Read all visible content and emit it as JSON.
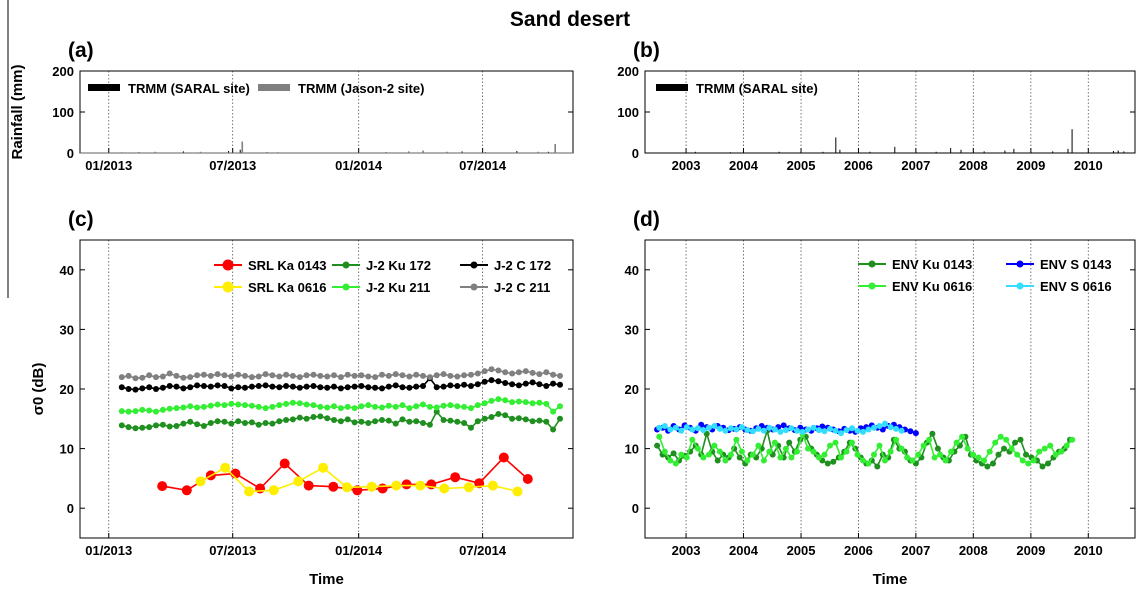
{
  "title": "Sand desert",
  "chart_data": [
    {
      "panel": "(a)",
      "type": "bar",
      "ylabel": "Rainfall (mm)",
      "xlabel": "",
      "ylim": [
        0,
        200
      ],
      "yticks": [
        0,
        100,
        200
      ],
      "xlim": [
        "2012-11-20",
        "2014-11-10"
      ],
      "xticks": [
        {
          "date": "2013-01-01",
          "label": "01/2013"
        },
        {
          "date": "2013-07-01",
          "label": "07/2013"
        },
        {
          "date": "2014-01-01",
          "label": "01/2014"
        },
        {
          "date": "2014-07-01",
          "label": "07/2014"
        }
      ],
      "legend": "top-left",
      "series": [
        {
          "name": "TRMM (SARAL site)",
          "color": "#000000",
          "x": [
            "2013-02-14",
            "2013-04-20",
            "2013-06-25",
            "2013-07-12",
            "2013-08-20",
            "2014-02-10",
            "2014-06-01",
            "2014-07-05",
            "2014-08-20",
            "2014-10-05"
          ],
          "values": [
            2,
            4,
            5,
            8,
            2,
            2,
            4,
            2,
            5,
            3
          ]
        },
        {
          "name": "TRMM (Jason-2 site)",
          "color": "#808080",
          "x": [
            "2013-01-20",
            "2013-03-10",
            "2013-05-15",
            "2013-07-15",
            "2013-09-05",
            "2014-03-15",
            "2014-04-05",
            "2014-05-10",
            "2014-09-20",
            "2014-10-15"
          ],
          "values": [
            2,
            3,
            3,
            28,
            2,
            4,
            6,
            3,
            3,
            22
          ]
        }
      ]
    },
    {
      "panel": "(b)",
      "type": "bar",
      "ylabel": "",
      "xlabel": "",
      "ylim": [
        0,
        200
      ],
      "yticks": [
        0,
        100,
        200
      ],
      "xlim": [
        "2002-04-15",
        "2010-10-25"
      ],
      "xticks": [
        {
          "date": "2003-01-01",
          "label": "2003"
        },
        {
          "date": "2004-01-01",
          "label": "2004"
        },
        {
          "date": "2005-01-01",
          "label": "2005"
        },
        {
          "date": "2006-01-01",
          "label": "2006"
        },
        {
          "date": "2007-01-01",
          "label": "2007"
        },
        {
          "date": "2008-01-01",
          "label": "2008"
        },
        {
          "date": "2009-01-01",
          "label": "2009"
        },
        {
          "date": "2010-01-01",
          "label": "2010"
        }
      ],
      "legend": "top-left",
      "series": [
        {
          "name": "TRMM (SARAL site)",
          "color": "#000000",
          "x": [
            "2003-03-01",
            "2003-10-10",
            "2004-08-15",
            "2005-05-20",
            "2005-08-10",
            "2005-09-05",
            "2006-03-15",
            "2006-08-20",
            "2007-05-10",
            "2007-08-10",
            "2007-10-15",
            "2008-03-10",
            "2008-07-20",
            "2008-09-15",
            "2009-05-20",
            "2009-08-25",
            "2009-09-20",
            "2010-06-10",
            "2010-07-10",
            "2010-08-15"
          ],
          "values": [
            3,
            2,
            3,
            3,
            38,
            8,
            3,
            15,
            3,
            12,
            8,
            4,
            6,
            10,
            4,
            10,
            58,
            5,
            6,
            4
          ]
        }
      ]
    },
    {
      "panel": "(c)",
      "type": "line",
      "xlabel": "Time",
      "ylabel": "σ0 (dB)",
      "ylim": [
        -5,
        45
      ],
      "yticks": [
        0,
        10,
        20,
        30,
        40
      ],
      "xlim": [
        "2012-11-20",
        "2014-11-10"
      ],
      "xticks": [
        {
          "date": "2013-01-01",
          "label": "01/2013"
        },
        {
          "date": "2013-07-01",
          "label": "07/2013"
        },
        {
          "date": "2014-01-01",
          "label": "01/2014"
        },
        {
          "date": "2014-07-01",
          "label": "07/2014"
        }
      ],
      "legend": "top-right",
      "series": [
        {
          "name": "SRL Ka 0143",
          "color": "#ff0000",
          "marker": 5,
          "x": [
            "2013-03-20",
            "2013-04-25",
            "2013-05-30",
            "2013-07-05",
            "2013-08-10",
            "2013-09-15",
            "2013-10-20",
            "2013-11-25",
            "2013-12-30",
            "2014-02-05",
            "2014-03-12",
            "2014-04-17",
            "2014-05-22",
            "2014-06-26",
            "2014-08-01",
            "2014-09-05"
          ],
          "values": [
            3.7,
            3.0,
            5.5,
            5.8,
            3.3,
            7.5,
            3.8,
            3.6,
            3.0,
            3.3,
            4.0,
            4.0,
            5.2,
            4.2,
            8.5,
            4.9
          ]
        },
        {
          "name": "SRL Ka 0616",
          "color": "#ffee00",
          "marker": 5,
          "x": [
            "2013-05-15",
            "2013-06-20",
            "2013-07-25",
            "2013-08-30",
            "2013-10-05",
            "2013-11-10",
            "2013-12-15",
            "2014-01-20",
            "2014-02-25",
            "2014-04-01",
            "2014-05-06",
            "2014-06-11",
            "2014-07-16",
            "2014-08-21"
          ],
          "values": [
            4.5,
            6.8,
            2.8,
            3.0,
            4.5,
            6.8,
            3.5,
            3.6,
            3.8,
            3.8,
            3.3,
            3.5,
            3.8,
            2.8
          ]
        },
        {
          "name": "J-2 Ku 172",
          "color": "#1f8f1f",
          "marker": 3,
          "x_start": "2013-01-20",
          "x_step_days": 10,
          "values": [
            13.9,
            13.6,
            13.4,
            13.5,
            13.6,
            13.9,
            14.0,
            13.7,
            13.8,
            14.2,
            14.5,
            14.1,
            13.8,
            14.3,
            14.6,
            14.5,
            14.2,
            14.6,
            14.3,
            14.4,
            14.0,
            14.3,
            14.2,
            14.6,
            14.8,
            14.9,
            15.2,
            15.0,
            15.3,
            15.4,
            15.1,
            14.8,
            14.6,
            14.9,
            14.4,
            14.5,
            14.3,
            14.6,
            14.8,
            14.7,
            14.2,
            14.9,
            14.5,
            14.6,
            14.3,
            14.0,
            16.2,
            14.8,
            14.7,
            14.5,
            14.3,
            13.5,
            14.6,
            15.0,
            15.3,
            15.8,
            15.6,
            15.0,
            15.1,
            14.9,
            14.6,
            14.7,
            14.5,
            13.2,
            15.0
          ]
        },
        {
          "name": "J-2 Ku 211",
          "color": "#33ee33",
          "marker": 3,
          "x_start": "2013-01-20",
          "x_step_days": 10,
          "values": [
            16.3,
            16.2,
            16.3,
            16.5,
            16.4,
            16.2,
            16.5,
            16.7,
            16.8,
            16.9,
            17.1,
            16.9,
            17.0,
            17.2,
            17.4,
            17.3,
            17.5,
            17.4,
            17.3,
            17.2,
            17.0,
            16.8,
            17.0,
            17.3,
            17.5,
            17.7,
            17.6,
            17.4,
            17.3,
            17.0,
            16.9,
            17.1,
            16.8,
            17.0,
            16.8,
            17.1,
            17.3,
            17.0,
            16.9,
            17.2,
            17.0,
            17.3,
            16.8,
            17.1,
            17.4,
            17.0,
            16.9,
            17.2,
            17.3,
            17.1,
            17.0,
            16.8,
            17.3,
            17.6,
            18.0,
            18.3,
            18.1,
            17.8,
            17.9,
            17.8,
            17.6,
            17.7,
            17.5,
            16.2,
            17.1
          ]
        },
        {
          "name": "J-2 C 172",
          "color": "#000000",
          "marker": 3,
          "x_start": "2013-01-20",
          "x_step_days": 10,
          "values": [
            20.3,
            20.0,
            19.9,
            20.1,
            20.3,
            20.0,
            20.2,
            20.5,
            20.4,
            20.1,
            20.3,
            20.6,
            20.5,
            20.4,
            20.6,
            20.5,
            20.1,
            20.3,
            20.2,
            20.4,
            20.5,
            20.6,
            20.4,
            20.3,
            20.5,
            20.4,
            20.2,
            20.4,
            20.5,
            20.3,
            20.2,
            20.4,
            20.1,
            20.3,
            20.4,
            20.5,
            20.3,
            20.2,
            20.1,
            20.4,
            20.6,
            20.3,
            20.2,
            20.4,
            20.5,
            21.8,
            20.3,
            20.4,
            20.6,
            20.5,
            20.7,
            20.5,
            20.8,
            21.2,
            21.5,
            21.3,
            21.0,
            20.8,
            20.6,
            20.9,
            21.1,
            20.8,
            20.5,
            20.9,
            20.7
          ]
        },
        {
          "name": "J-2 C 211",
          "color": "#808080",
          "marker": 3,
          "x_start": "2013-01-20",
          "x_step_days": 10,
          "values": [
            22.0,
            22.2,
            21.8,
            21.9,
            22.3,
            22.0,
            22.1,
            22.6,
            22.2,
            21.9,
            22.0,
            22.3,
            22.4,
            22.2,
            22.5,
            22.3,
            22.1,
            22.4,
            22.2,
            22.0,
            22.1,
            22.5,
            22.3,
            22.1,
            22.4,
            22.2,
            22.0,
            22.3,
            22.4,
            22.2,
            22.1,
            22.3,
            22.0,
            22.4,
            22.2,
            22.3,
            22.1,
            22.0,
            22.4,
            22.2,
            22.5,
            22.3,
            22.1,
            22.4,
            22.2,
            22.0,
            22.3,
            22.5,
            22.2,
            22.1,
            22.3,
            22.4,
            22.6,
            23.0,
            23.3,
            23.1,
            22.8,
            22.6,
            22.8,
            23.0,
            22.7,
            22.5,
            22.8,
            22.4,
            22.2
          ]
        }
      ]
    },
    {
      "panel": "(d)",
      "type": "line",
      "xlabel": "Time",
      "ylabel": "",
      "ylim": [
        -5,
        45
      ],
      "yticks": [
        0,
        10,
        20,
        30,
        40
      ],
      "xlim": [
        "2002-04-15",
        "2010-10-25"
      ],
      "xticks": [
        {
          "date": "2003-01-01",
          "label": "2003"
        },
        {
          "date": "2004-01-01",
          "label": "2004"
        },
        {
          "date": "2005-01-01",
          "label": "2005"
        },
        {
          "date": "2006-01-01",
          "label": "2006"
        },
        {
          "date": "2007-01-01",
          "label": "2007"
        },
        {
          "date": "2008-01-01",
          "label": "2008"
        },
        {
          "date": "2009-01-01",
          "label": "2009"
        },
        {
          "date": "2010-01-01",
          "label": "2010"
        }
      ],
      "legend": "top-right",
      "series": [
        {
          "name": "ENV Ku 0143",
          "color": "#1f8f1f",
          "marker": 3,
          "x_start": "2002-07-01",
          "x_step_days": 35,
          "values": [
            10.5,
            9.0,
            8.5,
            9.2,
            8.0,
            8.8,
            9.5,
            10.5,
            9.0,
            12.5,
            9.5,
            8.0,
            9.0,
            8.5,
            10.0,
            8.5,
            7.5,
            9.0,
            8.5,
            10.0,
            13.0,
            9.0,
            10.5,
            8.5,
            11.0,
            9.5,
            11.5,
            12.0,
            10.0,
            9.0,
            8.0,
            7.5,
            7.8,
            8.5,
            9.5,
            11.0,
            10.0,
            8.5,
            7.5,
            8.0,
            7.0,
            9.0,
            8.5,
            11.5,
            10.0,
            9.5,
            8.0,
            7.5,
            8.5,
            11.0,
            12.5,
            10.0,
            8.5,
            8.0,
            9.5,
            10.5,
            12.0,
            9.0,
            8.0,
            7.5,
            7.0,
            7.5,
            9.0,
            10.0,
            9.5,
            11.0,
            11.5,
            9.0,
            8.5,
            8.0,
            7.0,
            7.5,
            8.5,
            9.5,
            10.0,
            11.5
          ]
        },
        {
          "name": "ENV Ku 0616",
          "color": "#33ee33",
          "marker": 3,
          "x_start": "2002-07-15",
          "x_step_days": 35,
          "values": [
            12.0,
            9.5,
            8.0,
            7.5,
            9.0,
            8.5,
            11.5,
            10.0,
            8.5,
            9.0,
            10.5,
            9.5,
            8.0,
            9.0,
            11.5,
            9.5,
            8.0,
            9.0,
            10.5,
            8.0,
            9.5,
            11.0,
            8.5,
            10.0,
            8.5,
            9.5,
            12.5,
            10.0,
            9.5,
            8.5,
            9.0,
            10.5,
            11.0,
            8.5,
            9.5,
            11.0,
            9.0,
            8.0,
            7.5,
            9.0,
            10.5,
            8.0,
            9.5,
            11.5,
            10.0,
            8.5,
            8.0,
            9.0,
            10.5,
            11.5,
            8.5,
            9.0,
            8.0,
            9.5,
            11.0,
            12.0,
            10.0,
            9.0,
            8.5,
            8.0,
            9.5,
            11.0,
            12.0,
            11.5,
            10.0,
            9.0,
            8.0,
            7.5,
            8.0,
            9.5,
            10.0,
            10.5,
            9.0,
            9.5,
            10.5,
            11.5
          ]
        },
        {
          "name": "ENV S 0143",
          "color": "#0000ff",
          "marker": 3,
          "x_start": "2002-07-01",
          "x_step_days": 35,
          "values": [
            13.2,
            13.5,
            13.0,
            13.8,
            13.2,
            13.9,
            13.5,
            13.0,
            14.0,
            13.6,
            13.2,
            13.8,
            13.5,
            13.1,
            13.3,
            13.6,
            13.2,
            13.0,
            13.4,
            13.8,
            13.5,
            13.2,
            13.6,
            13.9,
            13.4,
            13.1,
            13.5,
            13.2,
            13.0,
            13.4,
            13.7,
            13.5,
            13.2,
            12.9,
            13.3,
            13.0,
            12.8,
            13.4,
            13.6,
            13.9,
            13.5,
            13.2,
            13.8,
            14.0,
            13.6,
            13.2,
            12.9,
            12.6
          ]
        },
        {
          "name": "ENV S 0616",
          "color": "#33ddff",
          "marker": 3,
          "x_start": "2002-07-15",
          "x_step_days": 35,
          "values": [
            13.5,
            13.8,
            13.2,
            13.5,
            13.0,
            13.6,
            13.2,
            13.4,
            13.1,
            13.5,
            13.8,
            13.3,
            13.0,
            13.4,
            13.2,
            13.6,
            13.1,
            12.9,
            13.3,
            13.0,
            13.5,
            13.2,
            12.8,
            13.1,
            13.4,
            13.0,
            12.8,
            13.2,
            13.5,
            13.1,
            12.9,
            13.3,
            13.0,
            12.6,
            13.1,
            13.4,
            13.0,
            12.8,
            13.2,
            13.5,
            13.8,
            14.2,
            13.6,
            13.3,
            13.0
          ]
        }
      ]
    }
  ]
}
